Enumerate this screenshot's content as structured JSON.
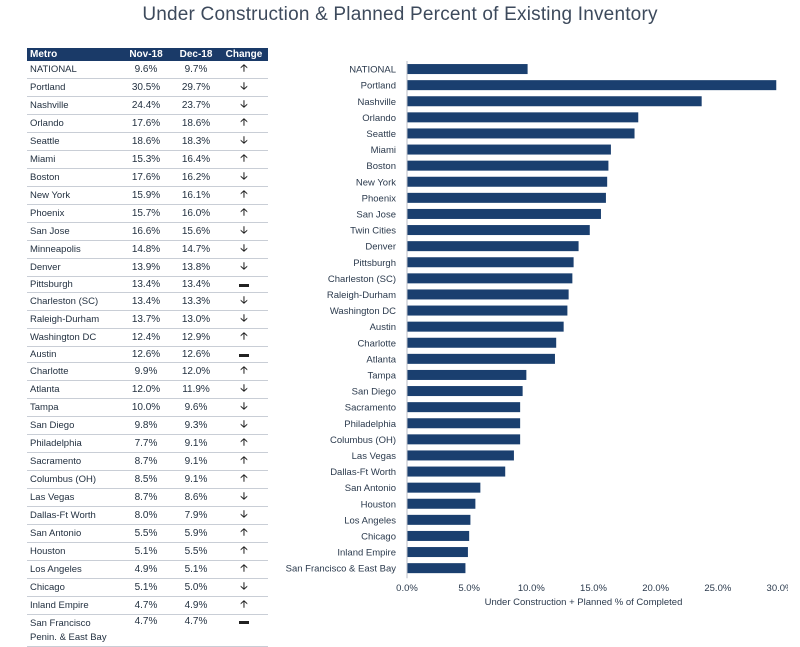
{
  "title": "Under Construction & Planned Percent of Existing Inventory",
  "table": {
    "headers": [
      "Metro",
      "Nov-18",
      "Dec-18",
      "Change"
    ],
    "rows": [
      {
        "metro": "NATIONAL",
        "nov": "9.6%",
        "dec": "9.7%",
        "change": "up"
      },
      {
        "metro": "Portland",
        "nov": "30.5%",
        "dec": "29.7%",
        "change": "down"
      },
      {
        "metro": "Nashville",
        "nov": "24.4%",
        "dec": "23.7%",
        "change": "down"
      },
      {
        "metro": "Orlando",
        "nov": "17.6%",
        "dec": "18.6%",
        "change": "up"
      },
      {
        "metro": "Seattle",
        "nov": "18.6%",
        "dec": "18.3%",
        "change": "down"
      },
      {
        "metro": "Miami",
        "nov": "15.3%",
        "dec": "16.4%",
        "change": "up"
      },
      {
        "metro": "Boston",
        "nov": "17.6%",
        "dec": "16.2%",
        "change": "down"
      },
      {
        "metro": "New York",
        "nov": "15.9%",
        "dec": "16.1%",
        "change": "up"
      },
      {
        "metro": "Phoenix",
        "nov": "15.7%",
        "dec": "16.0%",
        "change": "up"
      },
      {
        "metro": "San Jose",
        "nov": "16.6%",
        "dec": "15.6%",
        "change": "down"
      },
      {
        "metro": "Minneapolis",
        "nov": "14.8%",
        "dec": "14.7%",
        "change": "down"
      },
      {
        "metro": "Denver",
        "nov": "13.9%",
        "dec": "13.8%",
        "change": "down"
      },
      {
        "metro": "Pittsburgh",
        "nov": "13.4%",
        "dec": "13.4%",
        "change": "none"
      },
      {
        "metro": "Charleston (SC)",
        "nov": "13.4%",
        "dec": "13.3%",
        "change": "down"
      },
      {
        "metro": "Raleigh-Durham",
        "nov": "13.7%",
        "dec": "13.0%",
        "change": "down"
      },
      {
        "metro": "Washington DC",
        "nov": "12.4%",
        "dec": "12.9%",
        "change": "up"
      },
      {
        "metro": "Austin",
        "nov": "12.6%",
        "dec": "12.6%",
        "change": "none"
      },
      {
        "metro": "Charlotte",
        "nov": "9.9%",
        "dec": "12.0%",
        "change": "up"
      },
      {
        "metro": "Atlanta",
        "nov": "12.0%",
        "dec": "11.9%",
        "change": "down"
      },
      {
        "metro": "Tampa",
        "nov": "10.0%",
        "dec": "9.6%",
        "change": "down"
      },
      {
        "metro": "San Diego",
        "nov": "9.8%",
        "dec": "9.3%",
        "change": "down"
      },
      {
        "metro": "Philadelphia",
        "nov": "7.7%",
        "dec": "9.1%",
        "change": "up"
      },
      {
        "metro": "Sacramento",
        "nov": "8.7%",
        "dec": "9.1%",
        "change": "up"
      },
      {
        "metro": "Columbus (OH)",
        "nov": "8.5%",
        "dec": "9.1%",
        "change": "up"
      },
      {
        "metro": "Las Vegas",
        "nov": "8.7%",
        "dec": "8.6%",
        "change": "down"
      },
      {
        "metro": "Dallas-Ft Worth",
        "nov": "8.0%",
        "dec": "7.9%",
        "change": "down"
      },
      {
        "metro": "San Antonio",
        "nov": "5.5%",
        "dec": "5.9%",
        "change": "up"
      },
      {
        "metro": "Houston",
        "nov": "5.1%",
        "dec": "5.5%",
        "change": "up"
      },
      {
        "metro": "Los Angeles",
        "nov": "4.9%",
        "dec": "5.1%",
        "change": "up"
      },
      {
        "metro": "Chicago",
        "nov": "5.1%",
        "dec": "5.0%",
        "change": "down"
      },
      {
        "metro": "Inland Empire",
        "nov": "4.7%",
        "dec": "4.9%",
        "change": "up"
      },
      {
        "metro": "San Francisco Penin. & East Bay",
        "nov": "4.7%",
        "dec": "4.7%",
        "change": "none"
      }
    ],
    "change_glyphs": {
      "up": "🡡",
      "down": "🡣",
      "none": "▬"
    }
  },
  "chart_data": {
    "type": "bar",
    "orientation": "horizontal",
    "categories": [
      "NATIONAL",
      "Portland",
      "Nashville",
      "Orlando",
      "Seattle",
      "Miami",
      "Boston",
      "New York",
      "Phoenix",
      "San Jose",
      "Twin Cities",
      "Denver",
      "Pittsburgh",
      "Charleston (SC)",
      "Raleigh-Durham",
      "Washington DC",
      "Austin",
      "Charlotte",
      "Atlanta",
      "Tampa",
      "San Diego",
      "Sacramento",
      "Philadelphia",
      "Columbus (OH)",
      "Las Vegas",
      "Dallas-Ft Worth",
      "San Antonio",
      "Houston",
      "Los Angeles",
      "Chicago",
      "Inland Empire",
      "San Francisco & East Bay"
    ],
    "values": [
      9.7,
      29.7,
      23.7,
      18.6,
      18.3,
      16.4,
      16.2,
      16.1,
      16.0,
      15.6,
      14.7,
      13.8,
      13.4,
      13.3,
      13.0,
      12.9,
      12.6,
      12.0,
      11.9,
      9.6,
      9.3,
      9.1,
      9.1,
      9.1,
      8.6,
      7.9,
      5.9,
      5.5,
      5.1,
      5.0,
      4.9,
      4.7
    ],
    "xlabel": "Under Construction + Planned % of Completed",
    "ylabel": "",
    "xlim": [
      0,
      30
    ],
    "xticks": [
      "0.0%",
      "5.0%",
      "10.0%",
      "15.0%",
      "20.0%",
      "25.0%",
      "30.0%"
    ],
    "grid": false,
    "bar_color": "#1a3f6f"
  }
}
